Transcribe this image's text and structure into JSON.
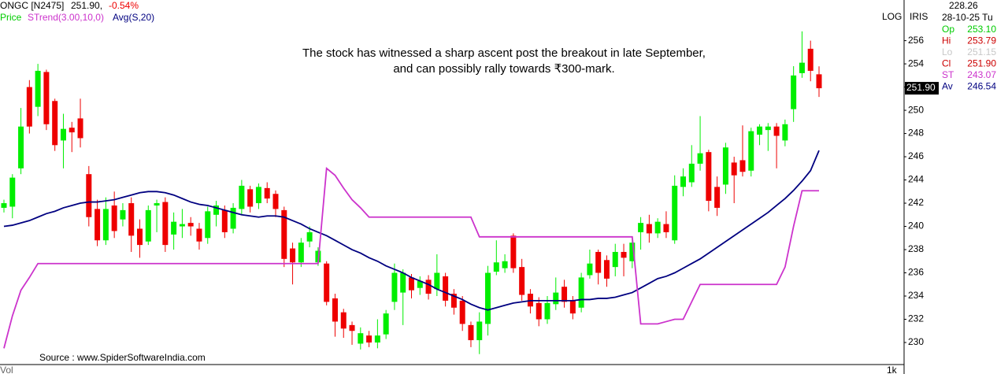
{
  "chart_data": {
    "type": "candlestick",
    "header": {
      "symbol": "ONGC [N2475]",
      "price": "251.90,",
      "change": "-0.54%",
      "legend_price": "Price",
      "legend_strend": "STrend(3.00,10,0)",
      "legend_avg": "Avg(S,20)"
    },
    "annotation": [
      "The stock has witnessed a sharp ascent post the breakout in late September,",
      "and can possibly rally towards ₹300-mark."
    ],
    "source": "Source : www.SpiderSoftwareIndia.com",
    "scale_label": "LOG",
    "iris_label": "IRIS",
    "volume_label": "Vol",
    "volume_tick": "1k",
    "price_tag": "251.90",
    "info_panel": {
      "cursor_value": "228.26",
      "date": "28-10-25 Tu",
      "rows": [
        {
          "label": "Op",
          "value": "253.10",
          "color": "#00cc00"
        },
        {
          "label": "Hi",
          "value": "253.79",
          "color": "#cc0000"
        },
        {
          "label": "Lo",
          "value": "251.15",
          "color": "#c8c8c8"
        },
        {
          "label": "Cl",
          "value": "251.90",
          "color": "#cc0000"
        },
        {
          "label": "ST",
          "value": "243.07",
          "color": "#cc33cc"
        },
        {
          "label": "Av",
          "value": "246.54",
          "color": "#000080"
        }
      ]
    },
    "up_color": "#00ee00",
    "down_color": "#ee0000",
    "ylim": [
      228.1,
      259.5
    ],
    "yticks": [
      230,
      232,
      234,
      236,
      238,
      240,
      242,
      244,
      246,
      248,
      250,
      252,
      254,
      256
    ],
    "open": [
      241.6,
      241.7,
      245.0,
      252.0,
      250.3,
      253.3,
      250.8,
      247.4,
      248.5,
      249.3,
      244.5,
      241.5,
      238.8,
      241.8,
      240.6,
      242.0,
      239.8,
      238.7,
      241.8,
      242.1,
      239.3,
      240.0,
      240.3,
      239.8,
      239.0,
      241.0,
      241.4,
      239.8,
      241.5,
      243.2,
      242.0,
      243.3,
      242.8,
      241.4,
      238.1,
      236.9,
      238.7,
      236.9,
      236.8,
      233.8,
      232.6,
      231.5,
      229.9,
      230.6,
      230.0,
      230.7,
      233.5,
      234.3,
      235.6,
      234.7,
      235.4,
      234.6,
      235.7,
      234.2,
      233.6,
      231.5,
      230.2,
      231.6,
      236.1,
      236.4,
      239.2,
      236.5,
      234.2,
      233.4,
      232.0,
      233.3,
      234.8,
      233.6,
      233.0,
      235.8,
      237.8,
      237.1,
      236.5,
      237.8,
      237.0,
      239.5,
      240.2,
      239.4,
      240.2,
      238.8,
      243.4,
      243.8,
      245.4,
      246.4,
      243.4,
      243.6,
      245.5,
      245.7,
      244.8,
      247.9,
      248.3,
      248.6,
      247.4,
      250.1,
      253.2,
      255.3,
      253.1
    ],
    "high": [
      242.3,
      244.5,
      250.2,
      252.6,
      254.0,
      253.5,
      251.0,
      249.7,
      249.0,
      251.0,
      245.2,
      242.3,
      242.5,
      243.0,
      242.0,
      242.5,
      240.6,
      241.8,
      242.3,
      242.5,
      241.2,
      241.5,
      240.8,
      240.3,
      241.7,
      242.2,
      241.8,
      242.0,
      244.0,
      243.5,
      243.7,
      243.8,
      243.1,
      241.7,
      238.6,
      239.0,
      240.0,
      238.2,
      237.0,
      234.2,
      232.9,
      231.8,
      231.3,
      231.0,
      232.0,
      232.8,
      236.8,
      236.3,
      235.9,
      235.7,
      235.8,
      237.6,
      236.0,
      234.6,
      234.0,
      231.8,
      232.6,
      236.6,
      238.8,
      237.6,
      239.4,
      237.2,
      234.6,
      233.9,
      234.0,
      235.6,
      235.4,
      234.0,
      236.0,
      238.0,
      238.0,
      237.5,
      238.5,
      238.5,
      239.0,
      240.8,
      241.0,
      240.7,
      241.3,
      244.4,
      245.0,
      247.0,
      249.5,
      246.6,
      244.3,
      247.2,
      246.0,
      248.7,
      248.5,
      248.8,
      248.9,
      248.9,
      249.2,
      253.8,
      256.8,
      256.0,
      253.79
    ],
    "low": [
      241.2,
      240.7,
      244.5,
      248.0,
      249.5,
      248.3,
      246.5,
      245.0,
      246.4,
      246.8,
      240.0,
      238.3,
      238.4,
      239.0,
      240.0,
      237.8,
      237.3,
      238.4,
      239.5,
      237.8,
      238.0,
      239.0,
      239.2,
      238.0,
      238.5,
      240.0,
      239.0,
      239.4,
      241.0,
      241.2,
      241.5,
      242.0,
      240.8,
      236.5,
      235.0,
      236.5,
      238.2,
      236.6,
      233.2,
      230.5,
      230.4,
      229.8,
      229.4,
      229.6,
      229.5,
      230.3,
      232.8,
      231.5,
      233.8,
      234.1,
      233.7,
      234.0,
      233.1,
      232.4,
      231.0,
      229.6,
      229.0,
      230.6,
      235.8,
      236.0,
      236.0,
      233.6,
      232.5,
      231.4,
      231.6,
      232.8,
      233.0,
      232.0,
      232.6,
      235.5,
      235.0,
      234.8,
      235.7,
      235.7,
      236.4,
      238.0,
      238.6,
      239.0,
      239.0,
      238.5,
      242.6,
      243.4,
      244.8,
      241.3,
      240.9,
      242.8,
      242.0,
      244.3,
      244.3,
      247.0,
      246.5,
      245.0,
      246.9,
      249.0,
      252.8,
      252.5,
      251.15
    ],
    "close": [
      242.0,
      244.2,
      248.6,
      248.6,
      253.4,
      248.8,
      247.0,
      248.4,
      248.1,
      247.6,
      240.8,
      238.8,
      241.5,
      239.6,
      241.4,
      239.2,
      238.4,
      241.4,
      242.0,
      238.4,
      240.4,
      240.2,
      240.0,
      238.7,
      241.3,
      241.8,
      239.5,
      241.6,
      243.5,
      241.7,
      243.4,
      242.4,
      241.5,
      237.2,
      236.9,
      238.6,
      239.5,
      237.9,
      233.5,
      231.8,
      231.2,
      231.0,
      230.8,
      230.0,
      230.6,
      232.5,
      236.0,
      236.0,
      234.5,
      235.3,
      234.2,
      236.0,
      233.6,
      233.0,
      231.6,
      230.2,
      231.8,
      236.0,
      236.9,
      237.0,
      236.4,
      234.1,
      233.1,
      232.0,
      233.4,
      234.3,
      233.5,
      232.5,
      235.6,
      236.8,
      236.0,
      235.5,
      237.8,
      237.3,
      238.6,
      240.3,
      239.4,
      240.4,
      239.5,
      243.5,
      244.3,
      245.4,
      246.3,
      242.2,
      241.6,
      246.8,
      244.4,
      244.7,
      248.2,
      248.6,
      248.6,
      247.8,
      248.8,
      253.0,
      254.1,
      253.4,
      251.9
    ],
    "series": [
      {
        "name": "Avg(S,20)",
        "color": "#000080",
        "values": [
          240.0,
          240.1,
          240.3,
          240.5,
          240.8,
          241.1,
          241.3,
          241.6,
          241.8,
          242.0,
          242.1,
          242.1,
          242.2,
          242.3,
          242.5,
          242.7,
          242.9,
          243.0,
          243.0,
          242.9,
          242.7,
          242.4,
          242.1,
          241.9,
          241.8,
          241.6,
          241.4,
          241.2,
          241.0,
          240.9,
          240.8,
          240.9,
          240.9,
          240.8,
          240.5,
          240.2,
          239.8,
          239.5,
          239.2,
          238.8,
          238.4,
          238.0,
          237.7,
          237.3,
          237.0,
          236.6,
          236.3,
          236.0,
          235.6,
          235.3,
          235.0,
          234.6,
          234.3,
          234.0,
          233.7,
          233.3,
          233.0,
          232.8,
          233.0,
          233.2,
          233.4,
          233.5,
          233.6,
          233.6,
          233.6,
          233.6,
          233.6,
          233.6,
          233.7,
          233.7,
          233.8,
          233.8,
          233.9,
          234.1,
          234.3,
          234.7,
          235.1,
          235.5,
          235.7,
          236.0,
          236.4,
          236.8,
          237.2,
          237.7,
          238.2,
          238.7,
          239.2,
          239.7,
          240.2,
          240.7,
          241.2,
          241.8,
          242.4,
          243.1,
          243.9,
          244.8,
          246.54
        ]
      },
      {
        "name": "STrend(3.00,10,0)",
        "color": "#cc33cc",
        "values": [
          229.5,
          232.3,
          234.5,
          235.6,
          236.8,
          236.8,
          236.8,
          236.8,
          236.8,
          236.8,
          236.8,
          236.8,
          236.8,
          236.8,
          236.8,
          236.8,
          236.8,
          236.8,
          236.8,
          236.8,
          236.8,
          236.8,
          236.8,
          236.8,
          236.8,
          236.8,
          236.8,
          236.8,
          236.8,
          236.8,
          236.8,
          236.8,
          236.8,
          236.8,
          236.8,
          236.8,
          236.8,
          236.8,
          245.0,
          244.4,
          243.3,
          242.3,
          241.6,
          240.8,
          240.8,
          240.8,
          240.8,
          240.8,
          240.8,
          240.8,
          240.8,
          240.8,
          240.8,
          240.8,
          240.8,
          240.8,
          239.1,
          239.1,
          239.1,
          239.1,
          239.1,
          239.1,
          239.1,
          239.1,
          239.1,
          239.1,
          239.1,
          239.1,
          239.1,
          239.1,
          239.1,
          239.1,
          239.1,
          239.1,
          239.1,
          231.6,
          231.6,
          231.6,
          231.8,
          232.0,
          232.0,
          233.5,
          235.0,
          235.0,
          235.0,
          235.0,
          235.0,
          235.0,
          235.0,
          235.0,
          235.0,
          235.0,
          236.5,
          240.0,
          243.07,
          243.07,
          243.07
        ]
      }
    ]
  }
}
